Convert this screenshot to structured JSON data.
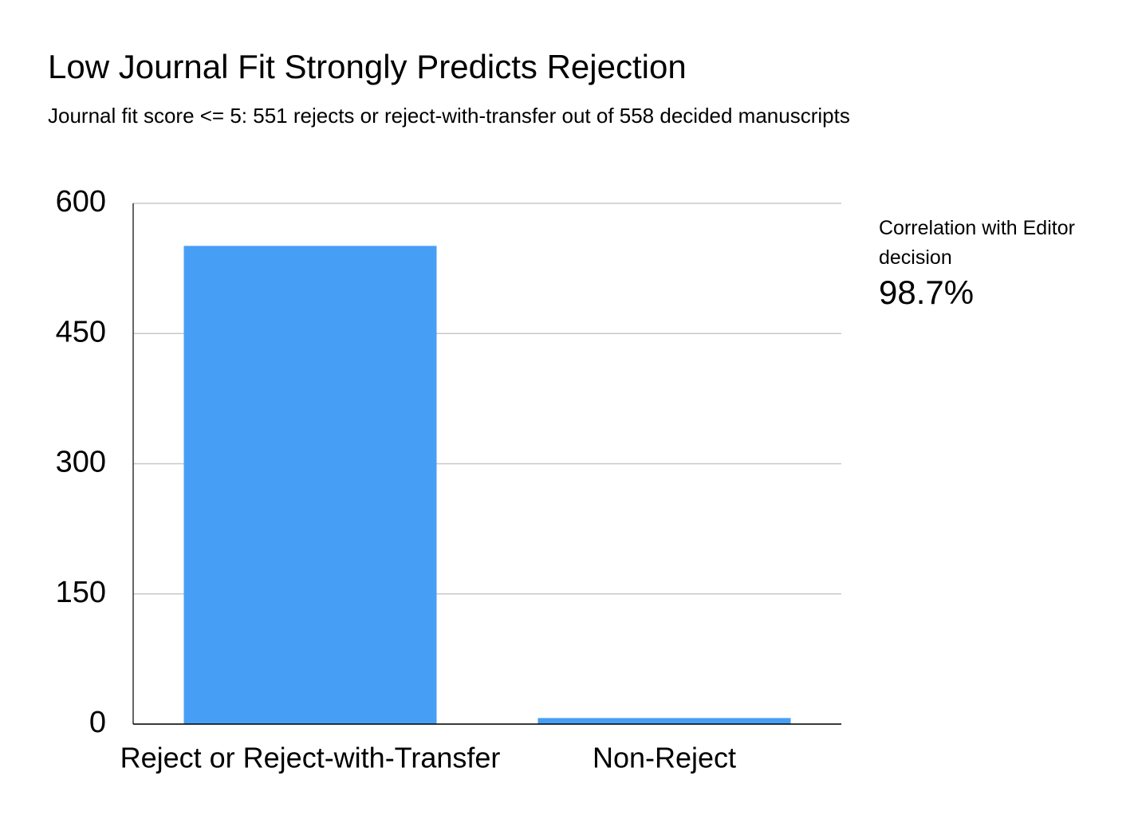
{
  "chart_data": {
    "type": "bar",
    "title": "Low Journal Fit Strongly Predicts Rejection",
    "subtitle": "Journal fit score <= 5: 551 rejects or reject-with-transfer out of 558 decided manuscripts",
    "categories": [
      "Reject or Reject-with-Transfer",
      "Non-Reject"
    ],
    "values": [
      551,
      7
    ],
    "color": "#479ff5",
    "ylim": [
      0,
      600
    ],
    "yticks": [
      0,
      150,
      300,
      450,
      600
    ],
    "grid": true,
    "annotation": {
      "label": "Correlation with Editor decision",
      "value": "98.7%"
    }
  }
}
